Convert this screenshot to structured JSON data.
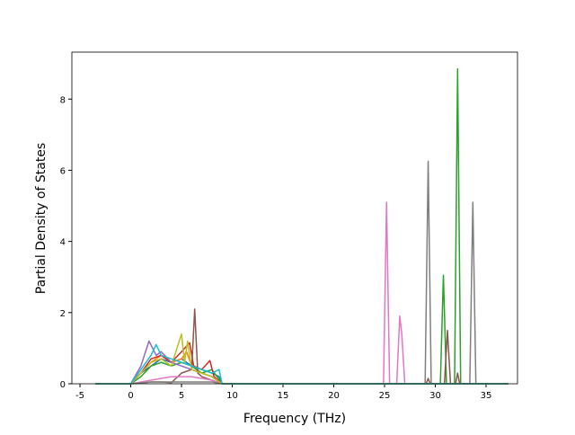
{
  "chart_data": {
    "type": "line",
    "x_label": "Frequency (THz)",
    "y_label": "Partial Density of States",
    "xlim": [
      -5.8,
      38.1
    ],
    "ylim": [
      0,
      9.32
    ],
    "xticks": [
      -5,
      0,
      5,
      10,
      15,
      20,
      25,
      30,
      35
    ],
    "yticks": [
      0,
      2,
      4,
      6,
      8
    ],
    "series": [
      {
        "color": "#1f77b4",
        "x": [
          -3.5,
          0,
          1,
          2,
          3,
          4,
          5,
          6,
          7,
          8,
          8.7,
          9,
          37.2
        ],
        "values": [
          0,
          0,
          0.3,
          0.5,
          0.7,
          0.6,
          0.7,
          0.5,
          0.4,
          0.3,
          0.2,
          0,
          0
        ]
      },
      {
        "color": "#ff7f0e",
        "x": [
          -3.5,
          0,
          1,
          2,
          3,
          4,
          5,
          5.5,
          6,
          7,
          8,
          9,
          37.2
        ],
        "values": [
          0,
          0,
          0.3,
          0.6,
          0.8,
          0.6,
          0.7,
          0.9,
          0.5,
          0.3,
          0.2,
          0,
          0
        ]
      },
      {
        "color": "#2ca02c",
        "x": [
          -3.5,
          0,
          1,
          2,
          3,
          4,
          5,
          6,
          7,
          8,
          9,
          30.5,
          30.8,
          31.1,
          31.9,
          32.2,
          32.5,
          37.2
        ],
        "values": [
          0,
          0,
          0.2,
          0.5,
          0.6,
          0.5,
          0.6,
          0.5,
          0.3,
          0.4,
          0,
          0,
          3.05,
          0,
          0,
          8.85,
          0,
          0
        ]
      },
      {
        "color": "#d62728",
        "x": [
          -3.5,
          0,
          1,
          2,
          3,
          4,
          5,
          5.8,
          6.2,
          7,
          7.8,
          8.2,
          9,
          37.2
        ],
        "values": [
          0,
          0,
          0.3,
          0.7,
          0.8,
          0.6,
          0.9,
          1.15,
          0.5,
          0.4,
          0.65,
          0.2,
          0,
          0
        ]
      },
      {
        "color": "#9467bd",
        "x": [
          -3.5,
          0,
          1,
          1.8,
          2.5,
          3,
          4,
          5,
          6,
          7,
          8,
          9,
          37.2
        ],
        "values": [
          0,
          0,
          0.5,
          1.2,
          0.8,
          0.9,
          0.6,
          0.5,
          0.4,
          0.3,
          0.2,
          0,
          0
        ]
      },
      {
        "color": "#8c564b",
        "x": [
          -3.5,
          0,
          1,
          2,
          3,
          4,
          5,
          6,
          6.3,
          6.6,
          7,
          8,
          9,
          29.1,
          29.3,
          29.5,
          30.9,
          31.2,
          31.5,
          32,
          32.2,
          32.4,
          37.2
        ],
        "values": [
          0,
          0,
          0.02,
          0.05,
          0.05,
          0.03,
          0.3,
          0.4,
          2.1,
          0.3,
          0.2,
          0.1,
          0,
          0,
          0.15,
          0,
          0,
          1.5,
          0,
          0,
          0.3,
          0,
          0
        ]
      },
      {
        "color": "#e377c2",
        "x": [
          -3.5,
          0,
          2,
          4,
          6,
          8,
          9,
          24.9,
          25.2,
          25.5,
          26.2,
          26.5,
          26.7,
          27,
          37.2
        ],
        "values": [
          0,
          0,
          0.1,
          0.2,
          0.2,
          0.1,
          0,
          0,
          5.1,
          0,
          0,
          1.9,
          1.4,
          0,
          0
        ]
      },
      {
        "color": "#7f7f7f",
        "x": [
          -3.5,
          0,
          2,
          4,
          6,
          8,
          9,
          29,
          29.3,
          29.6,
          33.4,
          33.7,
          34,
          37.2
        ],
        "values": [
          0,
          0,
          0.05,
          0.05,
          0.05,
          0.05,
          0,
          0,
          6.25,
          0,
          0,
          5.1,
          0,
          0
        ]
      },
      {
        "color": "#bcbd22",
        "x": [
          -3.5,
          0,
          1,
          2,
          3,
          4,
          5,
          5.3,
          5.6,
          6,
          7,
          8,
          9,
          37.2
        ],
        "values": [
          0,
          0,
          0.3,
          0.6,
          0.7,
          0.5,
          1.4,
          0.6,
          1.2,
          0.4,
          0.3,
          0.2,
          0,
          0
        ]
      },
      {
        "color": "#17becf",
        "x": [
          -3.5,
          0,
          1,
          2,
          2.5,
          3,
          4,
          5,
          6,
          7,
          8,
          8.7,
          9,
          37.2
        ],
        "values": [
          0,
          0,
          0.4,
          0.8,
          1.1,
          0.8,
          0.7,
          0.6,
          0.5,
          0.4,
          0.3,
          0.4,
          0,
          0
        ]
      }
    ]
  }
}
